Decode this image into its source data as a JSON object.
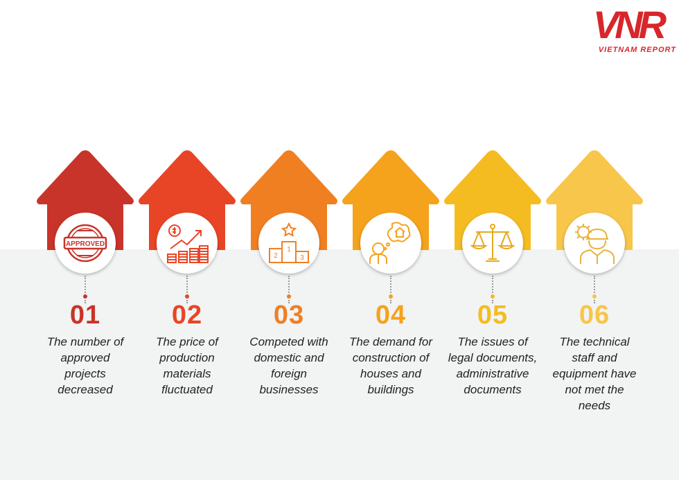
{
  "logo": {
    "text": "VNR",
    "subtitle": "VIETNAM REPORT"
  },
  "items": [
    {
      "number": "01",
      "text": "The number of approved projects decreased",
      "color": "#c8342a",
      "icon": "approved-stamp-icon",
      "icon_text": "APPROVED"
    },
    {
      "number": "02",
      "text": "The price of production materials fluctuated",
      "color": "#e84526",
      "icon": "rising-coins-icon"
    },
    {
      "number": "03",
      "text": "Competed with domestic and foreign businesses",
      "color": "#f07f22",
      "icon": "podium-icon",
      "icon_text": [
        "1",
        "2",
        "3"
      ]
    },
    {
      "number": "04",
      "text": "The demand for construction of houses and buildings",
      "color": "#f5a21c",
      "icon": "person-thinking-house-icon"
    },
    {
      "number": "05",
      "text": "The issues of legal documents, administrative documents",
      "color": "#f5bc21",
      "icon": "scales-icon"
    },
    {
      "number": "06",
      "text": "The technical staff and equipment have not met the needs",
      "color": "#f7c64a",
      "icon": "engineer-gear-icon"
    }
  ]
}
